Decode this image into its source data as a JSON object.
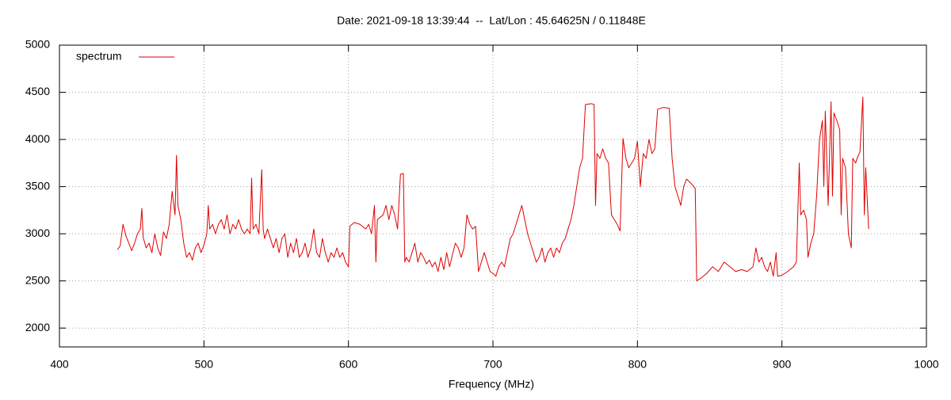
{
  "chart_data": {
    "type": "line",
    "title": "Date: 2021-09-18 13:39:44  --  Lat/Lon : 45.64625N / 0.11848E",
    "x_label": "Frequency (MHz)",
    "xlim": [
      400,
      1000
    ],
    "xticks": [
      400,
      500,
      600,
      700,
      800,
      900,
      1000
    ],
    "ylim": [
      1800,
      5000
    ],
    "yticks": [
      2000,
      2500,
      3000,
      3500,
      4000,
      4500,
      5000
    ],
    "grid": true,
    "legend_position": "top-left",
    "x": [
      440,
      442,
      444,
      446,
      448,
      450,
      452,
      454,
      456,
      457,
      458,
      460,
      462,
      464,
      466,
      468,
      470,
      472,
      474,
      476,
      478,
      480,
      481,
      482,
      484,
      486,
      488,
      490,
      492,
      494,
      496,
      498,
      500,
      502,
      503,
      504,
      506,
      508,
      510,
      512,
      514,
      516,
      518,
      520,
      522,
      524,
      526,
      528,
      530,
      532,
      533,
      534,
      536,
      538,
      540,
      541,
      542,
      544,
      546,
      548,
      550,
      552,
      554,
      556,
      558,
      560,
      562,
      564,
      566,
      568,
      570,
      572,
      574,
      576,
      578,
      580,
      582,
      584,
      586,
      588,
      590,
      592,
      594,
      596,
      598,
      600,
      601,
      604,
      608,
      612,
      614,
      616,
      618,
      619,
      620,
      624,
      626,
      628,
      630,
      632,
      634,
      636,
      638,
      639,
      640,
      642,
      644,
      646,
      648,
      650,
      652,
      654,
      656,
      658,
      660,
      662,
      664,
      666,
      668,
      670,
      672,
      674,
      676,
      678,
      680,
      682,
      684,
      686,
      688,
      690,
      692,
      694,
      696,
      698,
      700,
      702,
      704,
      706,
      708,
      710,
      712,
      714,
      716,
      718,
      720,
      722,
      724,
      726,
      728,
      730,
      732,
      734,
      736,
      738,
      740,
      742,
      744,
      746,
      748,
      750,
      752,
      754,
      756,
      758,
      760,
      762,
      764,
      768,
      770,
      771,
      772,
      774,
      776,
      778,
      780,
      782,
      784,
      786,
      788,
      790,
      792,
      794,
      796,
      798,
      800,
      802,
      804,
      806,
      808,
      810,
      812,
      814,
      818,
      822,
      824,
      826,
      828,
      830,
      832,
      834,
      836,
      838,
      840,
      841,
      844,
      848,
      852,
      856,
      860,
      864,
      868,
      872,
      876,
      880,
      882,
      884,
      886,
      888,
      890,
      892,
      894,
      896,
      897,
      900,
      904,
      908,
      910,
      912,
      913,
      915,
      917,
      918,
      920,
      922,
      924,
      926,
      928,
      929,
      930,
      932,
      934,
      935,
      936,
      938,
      940,
      941,
      942,
      944,
      946,
      948,
      949,
      951,
      952,
      954,
      956,
      957,
      958,
      960
    ],
    "series": [
      {
        "name": "spectrum",
        "color": "#e00000",
        "values": [
          2830,
          2870,
          3100,
          2980,
          2900,
          2820,
          2900,
          3000,
          3050,
          3270,
          2960,
          2850,
          2900,
          2800,
          3000,
          2850,
          2770,
          3020,
          2950,
          3100,
          3450,
          3200,
          3830,
          3300,
          3150,
          2900,
          2750,
          2800,
          2720,
          2850,
          2900,
          2800,
          2880,
          3000,
          3300,
          3050,
          3100,
          3000,
          3100,
          3150,
          3050,
          3200,
          3000,
          3100,
          3050,
          3150,
          3050,
          3000,
          3050,
          3000,
          3590,
          3050,
          3100,
          3000,
          3680,
          3050,
          2950,
          3050,
          2950,
          2850,
          2950,
          2800,
          2950,
          3000,
          2750,
          2900,
          2800,
          2950,
          2750,
          2800,
          2900,
          2750,
          2850,
          3050,
          2800,
          2750,
          2950,
          2800,
          2700,
          2800,
          2750,
          2850,
          2750,
          2800,
          2700,
          2650,
          3080,
          3120,
          3100,
          3050,
          3100,
          3000,
          3300,
          2700,
          3150,
          3200,
          3300,
          3150,
          3300,
          3200,
          3050,
          3630,
          3640,
          2700,
          2750,
          2700,
          2800,
          2900,
          2700,
          2800,
          2750,
          2680,
          2720,
          2650,
          2700,
          2600,
          2750,
          2620,
          2800,
          2650,
          2780,
          2900,
          2850,
          2750,
          2850,
          3200,
          3100,
          3050,
          3080,
          2600,
          2700,
          2800,
          2700,
          2600,
          2580,
          2550,
          2650,
          2700,
          2650,
          2800,
          2950,
          3000,
          3100,
          3200,
          3300,
          3150,
          3000,
          2900,
          2800,
          2700,
          2750,
          2850,
          2700,
          2800,
          2850,
          2750,
          2850,
          2800,
          2900,
          2950,
          3050,
          3150,
          3300,
          3500,
          3700,
          3800,
          4370,
          4380,
          4370,
          3300,
          3850,
          3800,
          3900,
          3800,
          3750,
          3200,
          3150,
          3100,
          3030,
          4010,
          3800,
          3700,
          3750,
          3800,
          3980,
          3500,
          3850,
          3800,
          4000,
          3850,
          3900,
          4320,
          4340,
          4330,
          3800,
          3500,
          3400,
          3300,
          3500,
          3580,
          3550,
          3520,
          3480,
          2500,
          2530,
          2580,
          2650,
          2600,
          2700,
          2650,
          2600,
          2620,
          2600,
          2650,
          2850,
          2700,
          2750,
          2650,
          2600,
          2700,
          2550,
          2800,
          2550,
          2560,
          2600,
          2650,
          2700,
          3750,
          3200,
          3250,
          3150,
          2750,
          2900,
          3000,
          3400,
          4000,
          4200,
          3500,
          4300,
          3300,
          4400,
          3400,
          4280,
          4200,
          4100,
          3200,
          3800,
          3700,
          3000,
          2850,
          3800,
          3750,
          3800,
          3870,
          4450,
          3200,
          3700,
          3050
        ]
      }
    ]
  }
}
